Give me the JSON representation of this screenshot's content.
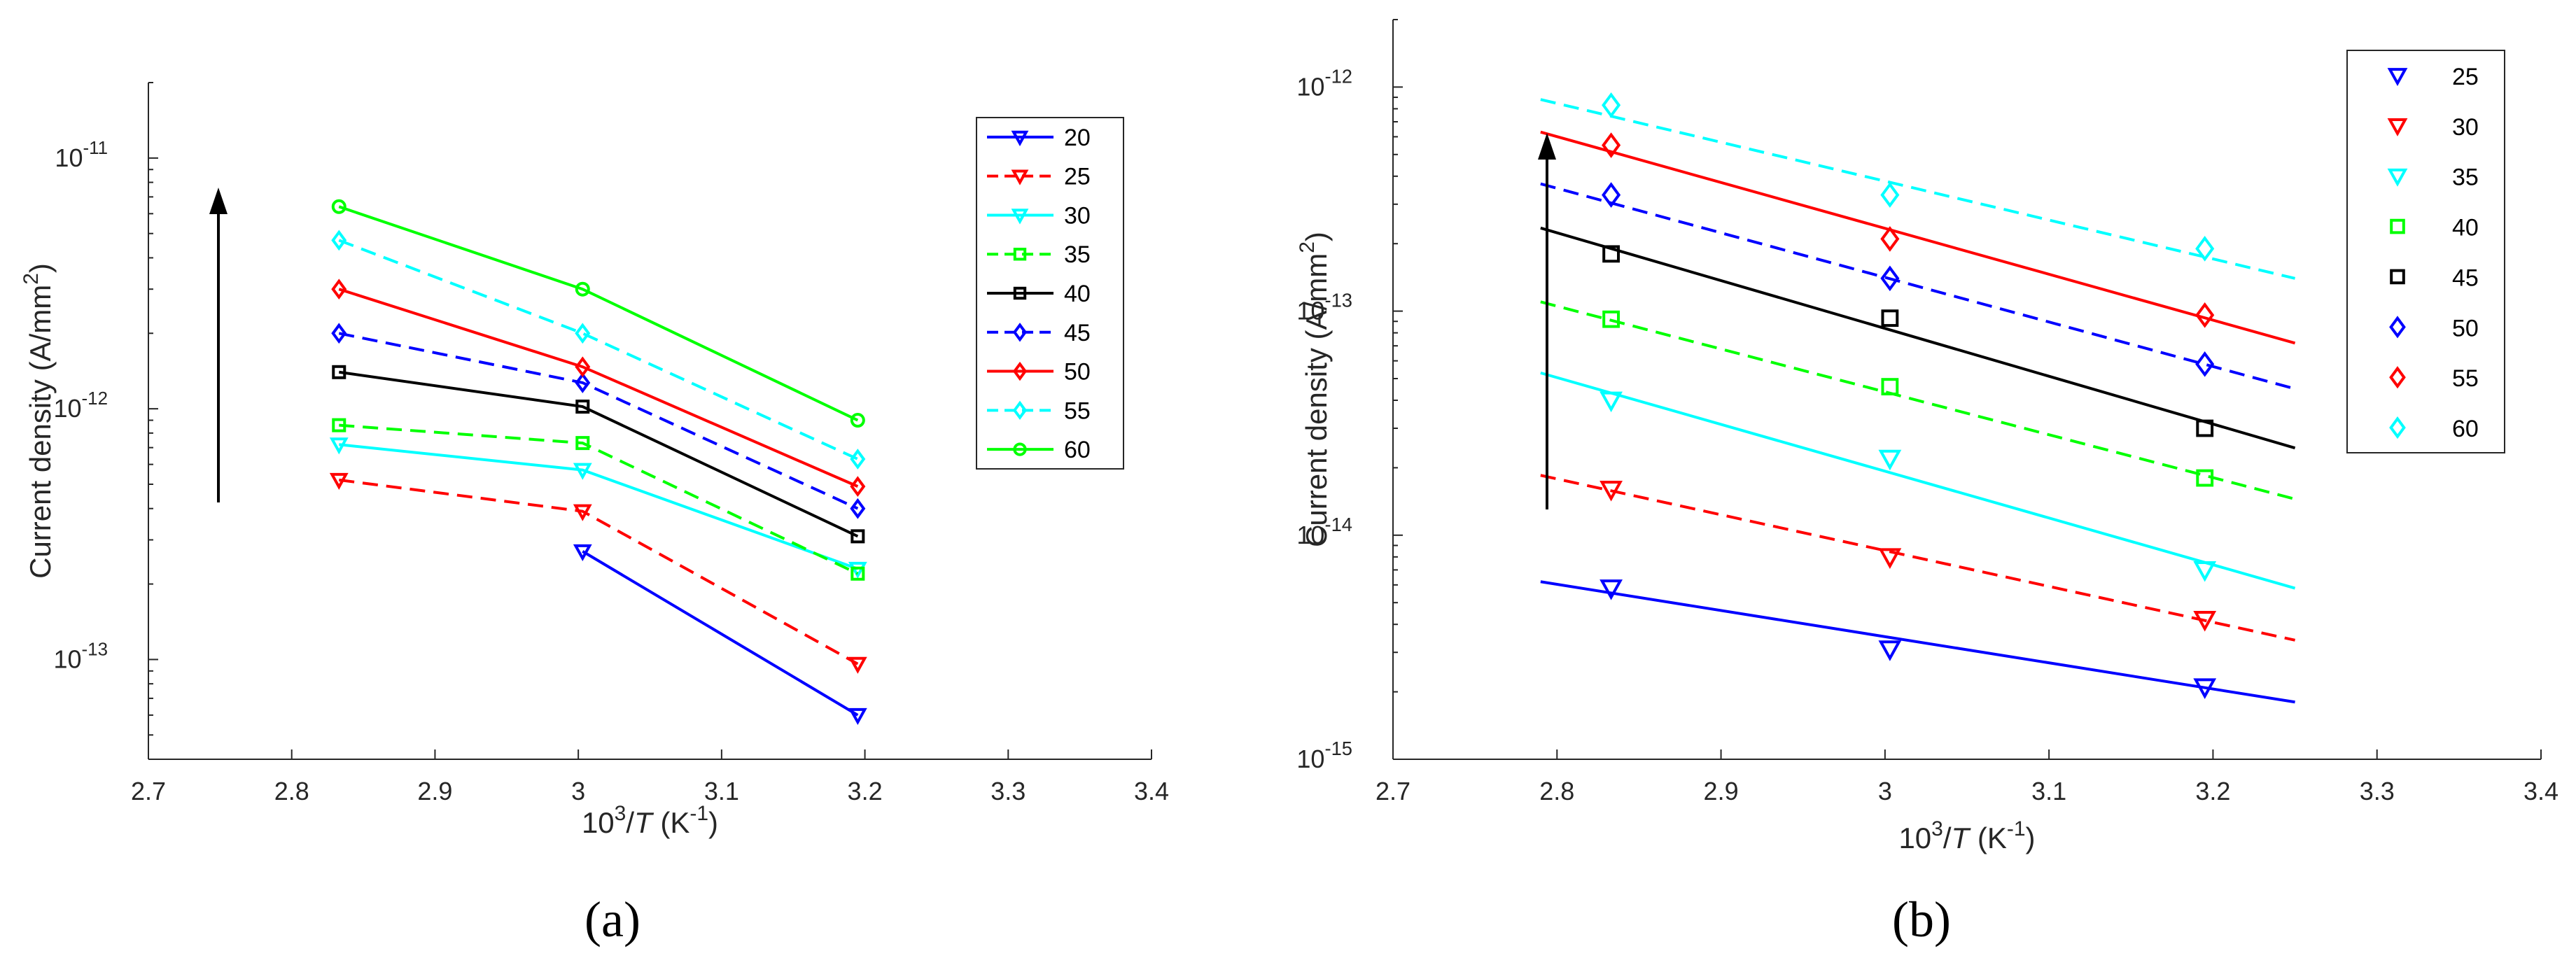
{
  "chart_data": [
    {
      "type": "line",
      "panel_label": "(a)",
      "xlabel_base": "10",
      "xlabel_exp": "3",
      "xlabel_mid": "/",
      "xlabel_var": "T",
      "xlabel_unit_open": " (K",
      "xlabel_unit_exp": "-1",
      "xlabel_unit_close": ")",
      "ylabel_main": "Current density (A/mm",
      "ylabel_exp": "2",
      "ylabel_close": ")",
      "xlim": [
        2.7,
        3.4
      ],
      "ylim": [
        4e-14,
        2e-11
      ],
      "yscale": "log",
      "xticks": [
        "2.7",
        "2.8",
        "2.9",
        "3",
        "3.1",
        "3.2",
        "3.3",
        "3.4"
      ],
      "yticks": [
        {
          "value": 1e-13,
          "base": "10",
          "exp": "-13"
        },
        {
          "value": 1e-12,
          "base": "10",
          "exp": "-12"
        },
        {
          "value": 1e-11,
          "base": "10",
          "exp": "-11"
        }
      ],
      "legend_position": "top-right",
      "series": [
        {
          "name": "20",
          "color": "#0000ff",
          "dash": "solid",
          "marker": "triangle-down",
          "x": [
            3.003,
            3.195
          ],
          "y": [
            2.7e-13,
            6e-14
          ]
        },
        {
          "name": "25",
          "color": "#ff0000",
          "dash": "dashed",
          "marker": "triangle-down",
          "x": [
            2.833,
            3.003,
            3.195
          ],
          "y": [
            5.2e-13,
            3.9e-13,
            9.6e-14
          ]
        },
        {
          "name": "30",
          "color": "#00ffff",
          "dash": "solid",
          "marker": "triangle-down",
          "x": [
            2.833,
            3.003,
            3.195
          ],
          "y": [
            7.2e-13,
            5.7e-13,
            2.3e-13
          ]
        },
        {
          "name": "35",
          "color": "#00ff00",
          "dash": "dashed",
          "marker": "square",
          "x": [
            2.833,
            3.003,
            3.195
          ],
          "y": [
            8.6e-13,
            7.3e-13,
            2.2e-13
          ]
        },
        {
          "name": "40",
          "color": "#000000",
          "dash": "solid",
          "marker": "square",
          "x": [
            2.833,
            3.003,
            3.195
          ],
          "y": [
            1.4e-12,
            1.02e-12,
            3.1e-13
          ]
        },
        {
          "name": "45",
          "color": "#0000ff",
          "dash": "dashed",
          "marker": "diamond",
          "x": [
            2.833,
            3.003,
            3.195
          ],
          "y": [
            2e-12,
            1.27e-12,
            4e-13
          ]
        },
        {
          "name": "50",
          "color": "#ff0000",
          "dash": "solid",
          "marker": "diamond",
          "x": [
            2.833,
            3.003,
            3.195
          ],
          "y": [
            3e-12,
            1.47e-12,
            4.9e-13
          ]
        },
        {
          "name": "55",
          "color": "#00ffff",
          "dash": "dashed",
          "marker": "diamond",
          "x": [
            2.833,
            3.003,
            3.195
          ],
          "y": [
            4.7e-12,
            2e-12,
            6.3e-13
          ]
        },
        {
          "name": "60",
          "color": "#00ff00",
          "dash": "solid",
          "marker": "circle",
          "x": [
            2.833,
            3.003,
            3.195
          ],
          "y": [
            6.4e-12,
            3e-12,
            9e-13
          ]
        }
      ]
    },
    {
      "type": "scatter",
      "panel_label": "(b)",
      "xlabel_base": "10",
      "xlabel_exp": "3",
      "xlabel_mid": "/",
      "xlabel_var": "T",
      "xlabel_unit_open": " (K",
      "xlabel_unit_exp": "-1",
      "xlabel_unit_close": ")",
      "ylabel_main": "Current density (A/mm",
      "ylabel_exp": "2",
      "ylabel_close": ")",
      "xlim": [
        2.7,
        3.4
      ],
      "ylim": [
        1e-15,
        2e-12
      ],
      "yscale": "log",
      "xticks": [
        "2.7",
        "2.8",
        "2.9",
        "3",
        "3.1",
        "3.2",
        "3.3",
        "3.4"
      ],
      "yticks": [
        {
          "value": 1e-15,
          "base": "10",
          "exp": "-15"
        },
        {
          "value": 1e-14,
          "base": "10",
          "exp": "-14"
        },
        {
          "value": 1e-13,
          "base": "10",
          "exp": "-13"
        },
        {
          "value": 1e-12,
          "base": "10",
          "exp": "-12"
        }
      ],
      "legend_position": "top-right",
      "series": [
        {
          "name": "25",
          "color": "#0000ff",
          "marker": "triangle-down",
          "dash": "solid",
          "x": [
            2.833,
            3.003,
            3.195
          ],
          "y": [
            5.8e-15,
            3.1e-15,
            2.1e-15
          ],
          "fit_x": [
            2.79,
            3.25
          ],
          "fit_y": [
            6.2e-15,
            1.8e-15
          ]
        },
        {
          "name": "30",
          "color": "#ff0000",
          "marker": "triangle-down",
          "dash": "dashed",
          "x": [
            2.833,
            3.003,
            3.195
          ],
          "y": [
            1.6e-14,
            8e-15,
            4.2e-15
          ],
          "fit_x": [
            2.79,
            3.25
          ],
          "fit_y": [
            1.85e-14,
            3.4e-15
          ]
        },
        {
          "name": "35",
          "color": "#00ffff",
          "marker": "triangle-down",
          "dash": "solid",
          "x": [
            2.833,
            3.003,
            3.195
          ],
          "y": [
            4e-14,
            2.2e-14,
            7e-15
          ],
          "fit_x": [
            2.79,
            3.25
          ],
          "fit_y": [
            5.3e-14,
            5.8e-15
          ]
        },
        {
          "name": "40",
          "color": "#00ff00",
          "marker": "square",
          "dash": "dashed",
          "x": [
            2.833,
            3.003,
            3.195
          ],
          "y": [
            9.2e-14,
            4.6e-14,
            1.8e-14
          ],
          "fit_x": [
            2.79,
            3.25
          ],
          "fit_y": [
            1.1e-13,
            1.45e-14
          ]
        },
        {
          "name": "45",
          "color": "#000000",
          "marker": "square",
          "dash": "solid",
          "x": [
            2.833,
            3.003,
            3.195
          ],
          "y": [
            1.8e-13,
            9.3e-14,
            3e-14
          ],
          "fit_x": [
            2.79,
            3.25
          ],
          "fit_y": [
            2.35e-13,
            2.45e-14
          ]
        },
        {
          "name": "50",
          "color": "#0000ff",
          "marker": "diamond",
          "dash": "dashed",
          "x": [
            2.833,
            3.003,
            3.195
          ],
          "y": [
            3.3e-13,
            1.4e-13,
            5.8e-14
          ],
          "fit_x": [
            2.79,
            3.25
          ],
          "fit_y": [
            3.7e-13,
            4.5e-14
          ]
        },
        {
          "name": "55",
          "color": "#ff0000",
          "marker": "diamond",
          "dash": "solid",
          "x": [
            2.833,
            3.003,
            3.195
          ],
          "y": [
            5.5e-13,
            2.1e-13,
            9.6e-14
          ],
          "fit_x": [
            2.79,
            3.25
          ],
          "fit_y": [
            6.3e-13,
            7.2e-14
          ]
        },
        {
          "name": "60",
          "color": "#00ffff",
          "marker": "diamond",
          "dash": "dashed",
          "x": [
            2.833,
            3.003,
            3.195
          ],
          "y": [
            8.3e-13,
            3.3e-13,
            1.9e-13
          ],
          "fit_x": [
            2.79,
            3.25
          ],
          "fit_y": [
            8.8e-13,
            1.4e-13
          ]
        }
      ]
    }
  ]
}
